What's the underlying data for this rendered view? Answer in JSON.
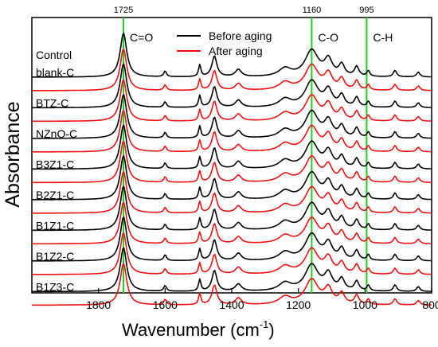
{
  "chart_data": {
    "type": "line",
    "xlabel": "Wavenumber (cm",
    "xlabel_sup": "-1",
    "xlabel_close": ")",
    "ylabel": "Absorbance",
    "xlim": [
      2000,
      800
    ],
    "x_ticks": [
      1800,
      1600,
      1400,
      1200,
      1000,
      800
    ],
    "grid": false,
    "legend_position": "top-center",
    "reference_lines": [
      {
        "x": 1725,
        "top_label": "1725",
        "band_label": "C=O"
      },
      {
        "x": 1160,
        "top_label": "1160",
        "band_label": "C-O"
      },
      {
        "x": 995,
        "top_label": "995",
        "band_label": "C-H"
      }
    ],
    "series": [
      {
        "name": "Before aging",
        "color": "#000000"
      },
      {
        "name": "After aging",
        "color": "#ee1111"
      }
    ],
    "header_label": "Control",
    "samples": [
      "blank-C",
      "BTZ-C",
      "NZnO-C",
      "B3Z1-C",
      "B2Z1-C",
      "B1Z1-C",
      "B1Z2-C",
      "B1Z3-C"
    ],
    "peak_wavenumbers": [
      1725,
      1600,
      1496,
      1452,
      1380,
      1240,
      1160,
      1110,
      1070,
      1025,
      990,
      910,
      840
    ]
  },
  "colors": {
    "reference_line": "#22cc22",
    "before": "#000000",
    "after": "#ee1111"
  }
}
